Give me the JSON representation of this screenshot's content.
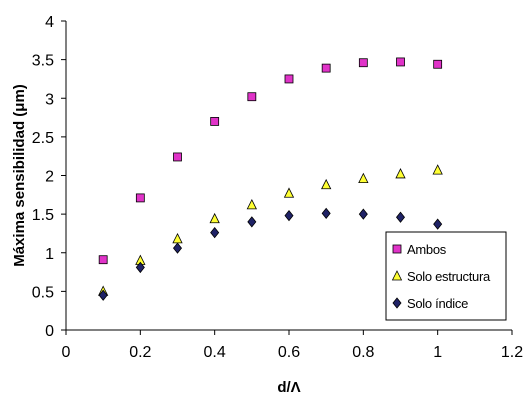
{
  "chart_data": {
    "type": "scatter",
    "title": "",
    "xlabel": "d/Λ",
    "ylabel": "Máxima sensibilidad (μm)",
    "xlim": [
      0,
      1.2
    ],
    "ylim": [
      0,
      4
    ],
    "xticks": [
      "0",
      "0.2",
      "0.4",
      "0.6",
      "0.8",
      "1",
      "1.2"
    ],
    "yticks": [
      "0",
      "0.5",
      "1",
      "1.5",
      "2",
      "2.5",
      "3",
      "3.5",
      "4"
    ],
    "grid": false,
    "legend_position": "lower-right",
    "x": [
      0.1,
      0.2,
      0.3,
      0.4,
      0.5,
      0.6,
      0.7,
      0.8,
      0.9,
      1.0
    ],
    "series": [
      {
        "name": "Ambos",
        "marker": "square",
        "color": "#E033C8",
        "values": [
          0.91,
          1.71,
          2.24,
          2.7,
          3.02,
          3.25,
          3.39,
          3.46,
          3.47,
          3.44
        ]
      },
      {
        "name": "Solo estructura",
        "marker": "triangle",
        "color": "#FFFF33",
        "values": [
          0.5,
          0.9,
          1.18,
          1.44,
          1.62,
          1.77,
          1.88,
          1.96,
          2.02,
          2.07
        ]
      },
      {
        "name": "Solo índice",
        "marker": "diamond",
        "color": "#1F2266",
        "values": [
          0.45,
          0.81,
          1.06,
          1.26,
          1.4,
          1.48,
          1.51,
          1.5,
          1.46,
          1.37
        ]
      }
    ]
  }
}
